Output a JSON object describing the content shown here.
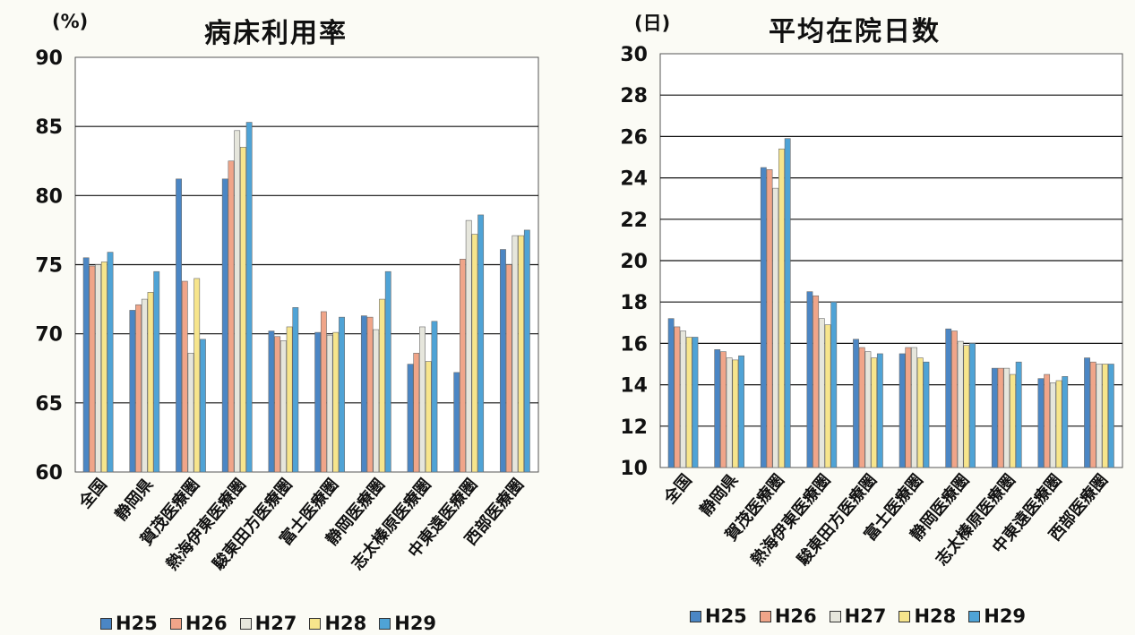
{
  "chart_data": [
    {
      "type": "bar",
      "title": "病床利用率",
      "unit_label": "(%)",
      "ylim": [
        60,
        90
      ],
      "yticks": [
        60,
        65,
        70,
        75,
        80,
        85,
        90
      ],
      "categories": [
        "全国",
        "静岡県",
        "賀茂医療圏",
        "熱海伊東医療圏",
        "駿東田方医療圏",
        "富士医療圏",
        "静岡医療圏",
        "志太榛原医療圏",
        "中東遠医療圏",
        "西部医療圏"
      ],
      "series": [
        {
          "name": "H25",
          "values": [
            75.5,
            71.7,
            81.2,
            81.2,
            70.2,
            70.1,
            71.3,
            67.8,
            67.2,
            76.1
          ]
        },
        {
          "name": "H26",
          "values": [
            74.9,
            72.1,
            73.8,
            82.5,
            69.8,
            71.6,
            71.2,
            68.6,
            75.4,
            75.0
          ]
        },
        {
          "name": "H27",
          "values": [
            75.0,
            72.5,
            68.6,
            84.7,
            69.5,
            69.9,
            70.3,
            70.5,
            78.2,
            77.1
          ]
        },
        {
          "name": "H28",
          "values": [
            75.2,
            73.0,
            74.0,
            83.5,
            70.5,
            70.1,
            72.5,
            68.0,
            77.2,
            77.1
          ]
        },
        {
          "name": "H29",
          "values": [
            75.9,
            74.5,
            69.6,
            85.3,
            71.9,
            71.2,
            74.5,
            70.9,
            78.6,
            77.5
          ]
        }
      ],
      "legend_position": "bottom",
      "grid": true
    },
    {
      "type": "bar",
      "title": "平均在院日数",
      "unit_label": "(日)",
      "ylim": [
        10,
        30
      ],
      "yticks": [
        10,
        12,
        14,
        16,
        18,
        20,
        22,
        24,
        26,
        28,
        30
      ],
      "categories": [
        "全国",
        "静岡県",
        "賀茂医療圏",
        "熱海伊東医療圏",
        "駿東田方医療圏",
        "富士医療圏",
        "静岡医療圏",
        "志太榛原医療圏",
        "中東遠医療圏",
        "西部医療圏"
      ],
      "series": [
        {
          "name": "H25",
          "values": [
            17.2,
            15.7,
            24.5,
            18.5,
            16.2,
            15.5,
            16.7,
            14.8,
            14.3,
            15.3
          ]
        },
        {
          "name": "H26",
          "values": [
            16.8,
            15.6,
            24.4,
            18.3,
            15.8,
            15.8,
            16.6,
            14.8,
            14.5,
            15.1
          ]
        },
        {
          "name": "H27",
          "values": [
            16.6,
            15.3,
            23.5,
            17.2,
            15.6,
            15.8,
            16.1,
            14.8,
            14.1,
            15.0
          ]
        },
        {
          "name": "H28",
          "values": [
            16.3,
            15.2,
            25.4,
            16.9,
            15.3,
            15.3,
            15.9,
            14.5,
            14.2,
            15.0
          ]
        },
        {
          "name": "H29",
          "values": [
            16.3,
            15.4,
            25.9,
            18.0,
            15.5,
            15.1,
            16.0,
            15.1,
            14.4,
            15.0
          ]
        }
      ],
      "legend_position": "bottom",
      "grid": true
    }
  ],
  "colors": {
    "H25": "#4b86c4",
    "H26": "#f0a589",
    "H27": "#e6e6dc",
    "H28": "#f7e58c",
    "H29": "#4fa3d6",
    "grid": "#111111",
    "plot_bg": "#ffffff"
  }
}
